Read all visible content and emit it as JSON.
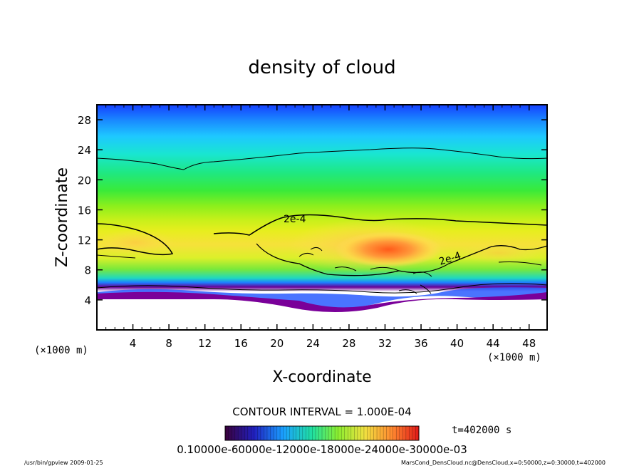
{
  "chart_data": {
    "type": "heatmap",
    "title": "density of cloud",
    "xlabel": "X-coordinate",
    "ylabel": "Z-coordinate",
    "x_unit": "(×1000 m)",
    "z_unit": "(×1000 m)",
    "xlim": [
      0,
      50
    ],
    "ylim": [
      0,
      30
    ],
    "x_ticks": [
      4,
      8,
      12,
      16,
      20,
      24,
      28,
      32,
      36,
      40,
      44,
      48
    ],
    "y_ticks": [
      4,
      8,
      12,
      16,
      20,
      24,
      28
    ],
    "contour_interval_text": "CONTOUR INTERVAL = 1.000E-04",
    "contour_labels": [
      "2e-4",
      "2e-4"
    ],
    "time_text": "t=402000 s",
    "colorbar_ticks_text": "0.10000e-60000e-12000e-18000e-24000e-30000e-03",
    "colors": [
      "#5a0077",
      "#1a1aff",
      "#00d8ff",
      "#22e85a",
      "#b7f000",
      "#ffe050",
      "#ff6a1a"
    ],
    "grid": false
  },
  "footer": {
    "left": "/usr/bin/gpview   2009-01-25",
    "right": "MarsCond_DensCloud.nc@DensCloud,x=0:50000,z=0:30000,t=402000"
  }
}
